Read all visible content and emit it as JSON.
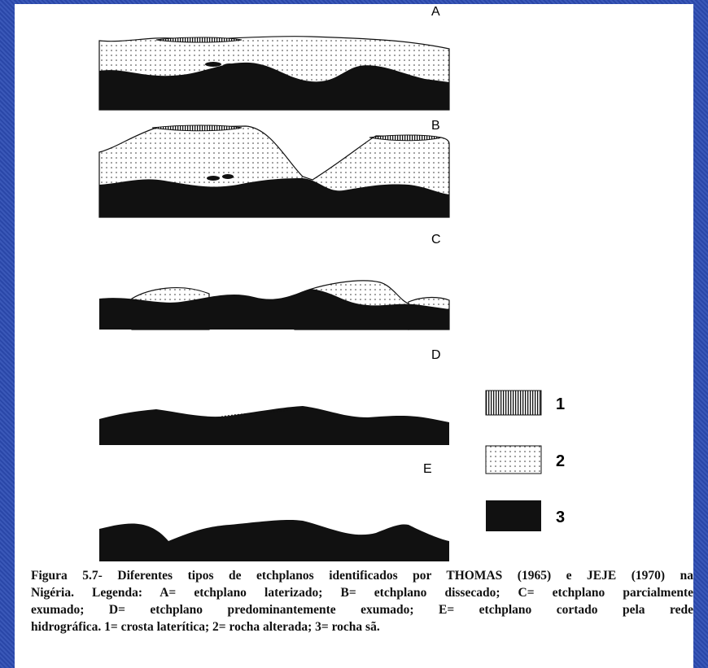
{
  "panels": [
    "A",
    "B",
    "C",
    "D",
    "E"
  ],
  "legend": [
    "1",
    "2",
    "3"
  ],
  "caption": {
    "lines": [
      "Figura 5.7- Diferentes tipos de etchplanos identificados por THOMAS (1965) e JEJE (1970) na",
      "Nigéria. Legenda: A= etchplano laterizado; B= etchplano dissecado; C= etchplano parcialmente",
      "exumado; D= etchplano predominantemente exumado; E= etchplano cortado pela rede",
      "hidrográfica. 1= crosta laterítica; 2= rocha alterada; 3= rocha sã."
    ]
  }
}
